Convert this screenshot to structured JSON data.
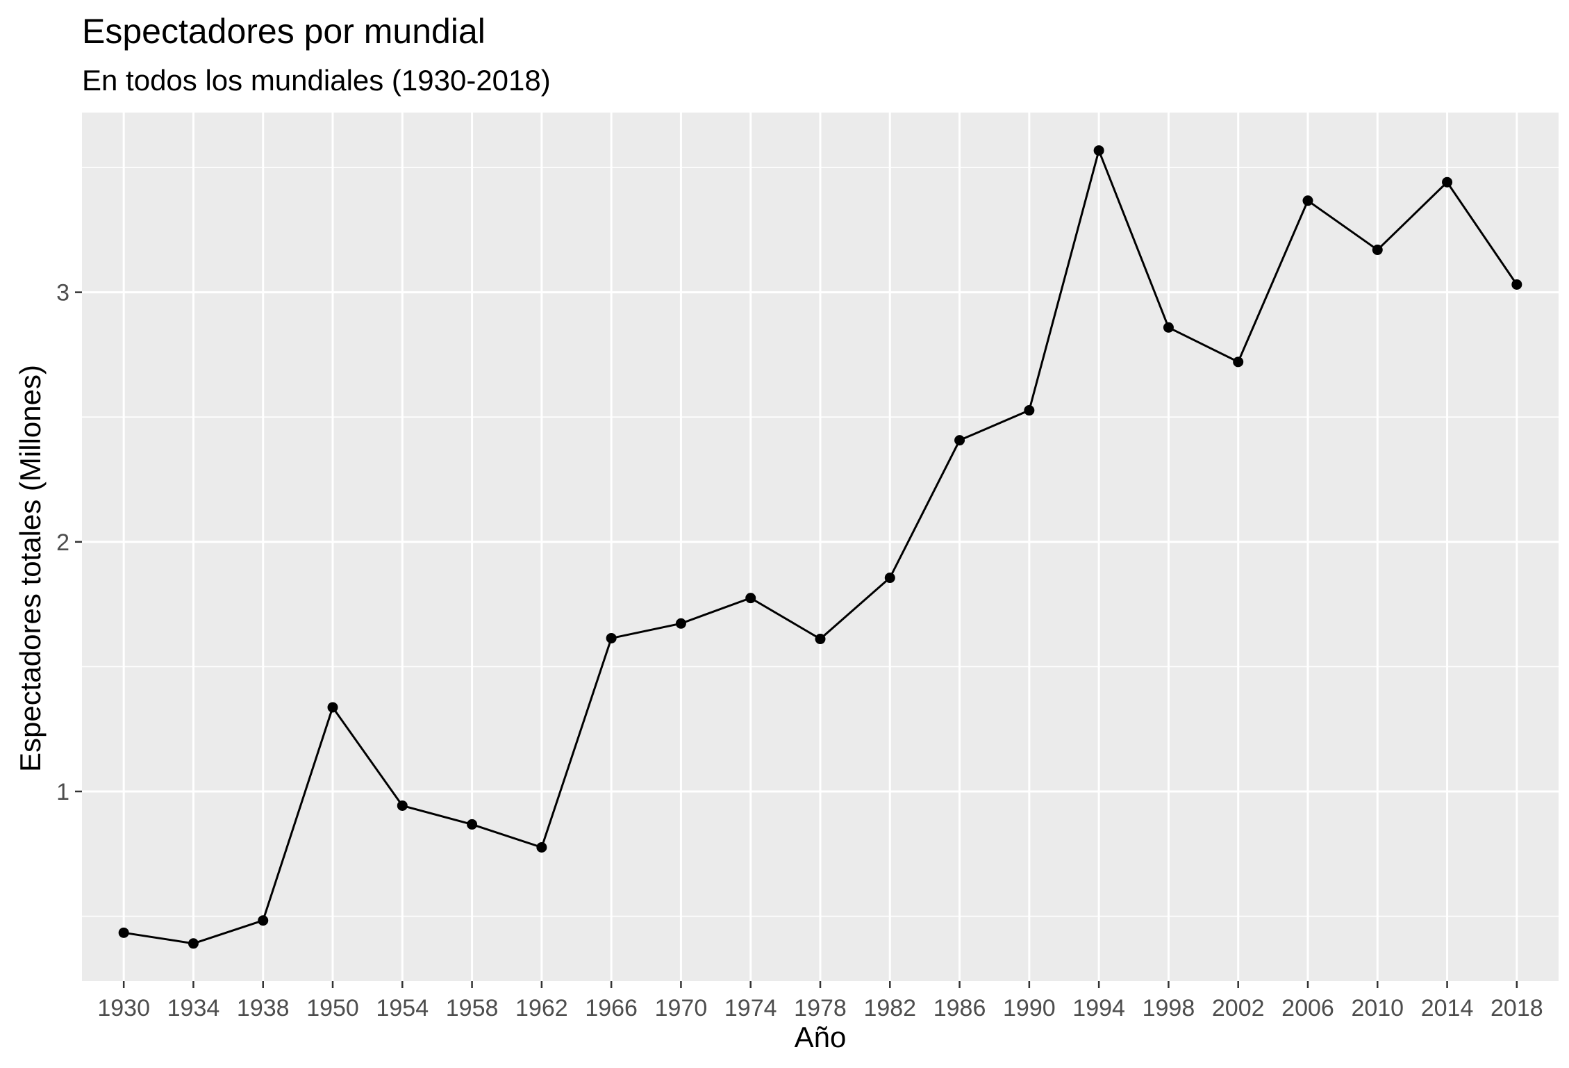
{
  "chart_data": {
    "type": "line",
    "title": "Espectadores por mundial",
    "subtitle": "En todos los mundiales (1930-2018)",
    "xlabel": "Año",
    "ylabel": "Espectadores totales (Millones)",
    "categories": [
      "1930",
      "1934",
      "1938",
      "1950",
      "1954",
      "1958",
      "1962",
      "1966",
      "1970",
      "1974",
      "1978",
      "1982",
      "1986",
      "1990",
      "1994",
      "1998",
      "2002",
      "2006",
      "2010",
      "2014",
      "2018"
    ],
    "series": [
      {
        "values": [
          0.434,
          0.391,
          0.483,
          1.337,
          0.943,
          0.868,
          0.776,
          1.614,
          1.673,
          1.775,
          1.611,
          1.856,
          2.407,
          2.527,
          3.568,
          2.859,
          2.721,
          3.367,
          3.17,
          3.441,
          3.031
        ]
      }
    ],
    "yticks": [
      1,
      2,
      3
    ],
    "ylim": [
      0.24,
      3.72
    ],
    "grid": true,
    "legend": "none",
    "colors": {
      "panel": "#ebebeb",
      "grid": "#ffffff",
      "line": "#000000",
      "tick_text": "#4d4d4d"
    }
  }
}
